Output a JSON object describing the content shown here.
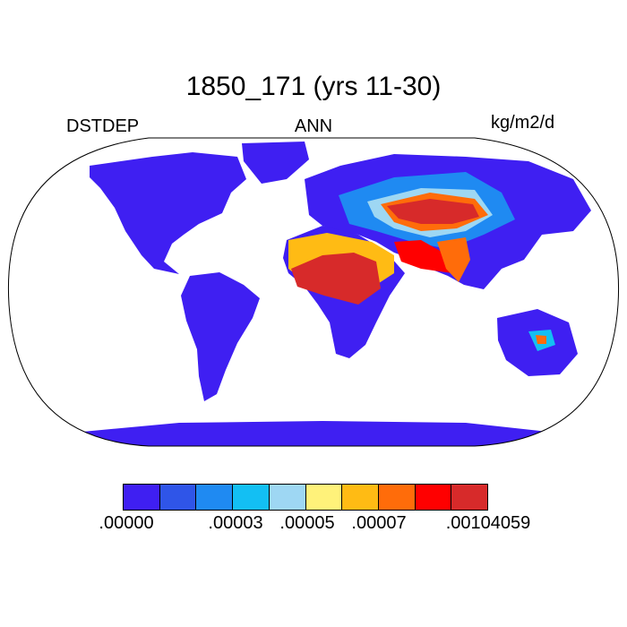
{
  "title": "1850_171 (yrs 11-30)",
  "left_label": "DSTDEP",
  "center_label": "ANN",
  "units": "kg/m2/d",
  "colorbar": {
    "colors": [
      "#3f1ff2",
      "#2f55e8",
      "#1f8af2",
      "#13bff3",
      "#9ed7f3",
      "#fff27a",
      "#ffbb14",
      "#ff6c0a",
      "#ff0000",
      "#d72a2a"
    ],
    "tick_labels": [
      ".00000",
      ".00003",
      ".00005",
      ".00007",
      ".00104059"
    ]
  }
}
